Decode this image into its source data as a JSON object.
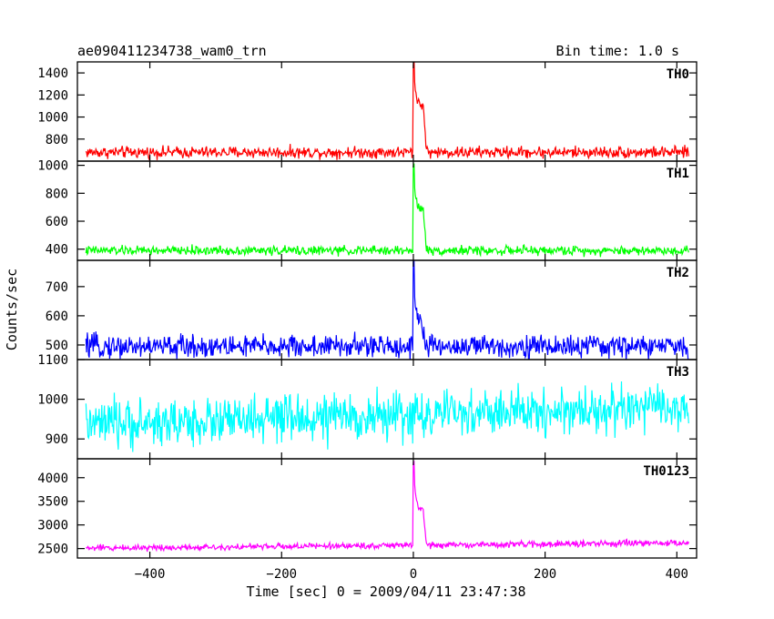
{
  "chart_data": {
    "type": "line",
    "title": "ae090411234738_wam0_trn",
    "bin_time_label": "Bin time: 1.0 s",
    "xlabel": "Time [sec] 0 = 2009/04/11 23:47:38",
    "ylabel": "Counts/sec",
    "xlim": [
      -510,
      430
    ],
    "x_ticks": [
      -400,
      -200,
      0,
      200,
      400
    ],
    "x_tick_labels": [
      "−400",
      "−200",
      "0",
      "200",
      "400"
    ],
    "data_x_range": [
      -497,
      418
    ],
    "grid": false,
    "panels": [
      {
        "name": "TH0",
        "color": "#ff0000",
        "ylim": [
          600,
          1500
        ],
        "y_ticks": [
          800,
          1000,
          1200,
          1400
        ],
        "y_tick_labels": [
          "800",
          "1000",
          "1200",
          "1400"
        ],
        "baseline": 680,
        "noise": 40,
        "burst": {
          "t0": 0,
          "peak": 1500,
          "plateau": 1100,
          "plateau_end": 15,
          "end": 20
        }
      },
      {
        "name": "TH1",
        "color": "#00ff00",
        "ylim": [
          320,
          1030
        ],
        "y_ticks": [
          400,
          600,
          800,
          1000
        ],
        "y_tick_labels": [
          "400",
          "600",
          "800",
          "1000"
        ],
        "baseline": 390,
        "noise": 25,
        "burst": {
          "t0": 0,
          "peak": 1000,
          "plateau": 680,
          "plateau_end": 15,
          "end": 20
        }
      },
      {
        "name": "TH2",
        "color": "#0000ff",
        "ylim": [
          450,
          790
        ],
        "y_ticks": [
          500,
          600,
          700
        ],
        "y_tick_labels": [
          "500",
          "600",
          "700"
        ],
        "baseline": 495,
        "noise": 30,
        "burst": {
          "t0": 0,
          "peak": 780,
          "plateau": 590,
          "plateau_end": 10,
          "end": 20
        }
      },
      {
        "name": "TH3",
        "color": "#00ffff",
        "ylim": [
          850,
          1100
        ],
        "y_ticks": [
          900,
          1000,
          1100
        ],
        "y_tick_labels": [
          "900",
          "1000",
          "1100"
        ],
        "baseline": 935,
        "baseline_end": 980,
        "noise": 45,
        "burst": null
      },
      {
        "name": "TH0123",
        "color": "#ff00ff",
        "ylim": [
          2300,
          4400
        ],
        "y_ticks": [
          2500,
          3000,
          3500,
          4000
        ],
        "y_tick_labels": [
          "2500",
          "3000",
          "3500",
          "4000"
        ],
        "baseline": 2510,
        "baseline_end": 2620,
        "noise": 50,
        "burst": {
          "t0": 0,
          "peak": 4350,
          "plateau": 3300,
          "plateau_end": 15,
          "end": 20
        }
      }
    ]
  }
}
